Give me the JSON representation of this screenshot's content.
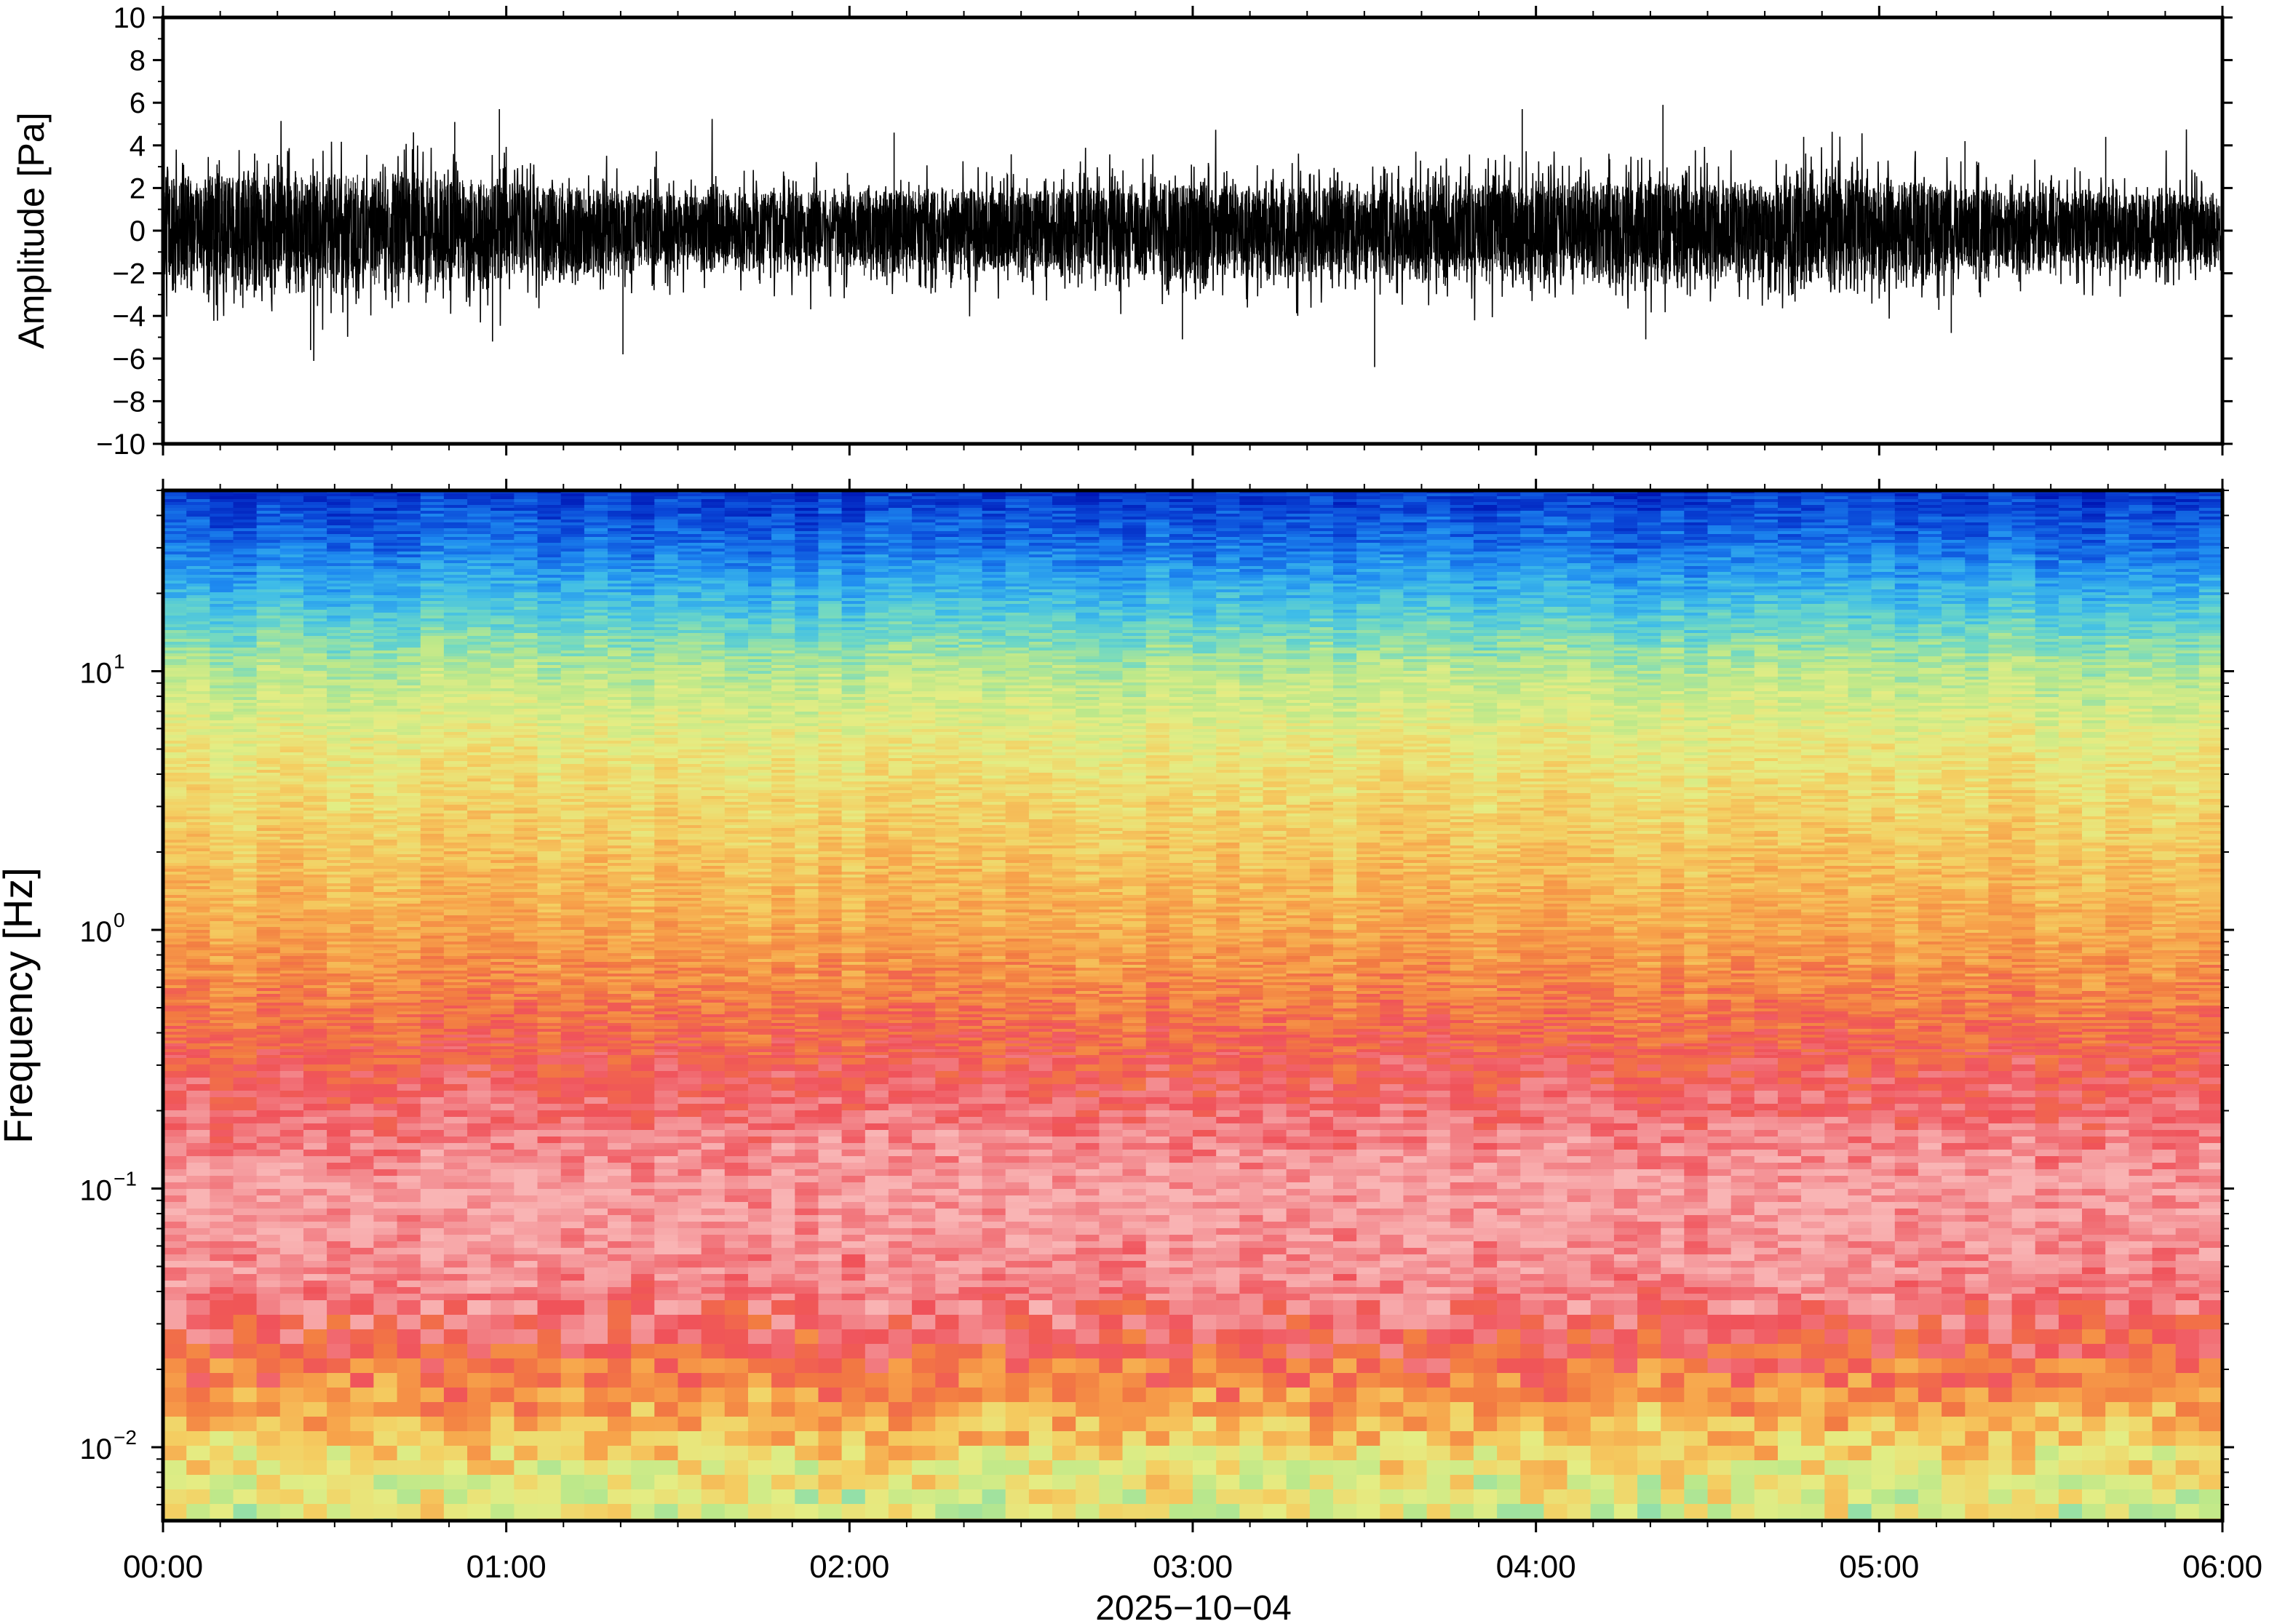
{
  "chart_data": [
    {
      "type": "line",
      "panel": "waveform",
      "ylabel": "Amplitude [Pa]",
      "ylim": [
        -10,
        10
      ],
      "yticks": [
        10,
        8,
        6,
        4,
        2,
        0,
        -2,
        -4,
        -6,
        -8,
        -10
      ],
      "ytick_labels": [
        "10",
        "8",
        "6",
        "4",
        "2",
        "0",
        "−2",
        "−4",
        "−6",
        "−8",
        "−10"
      ],
      "x_range": [
        "00:00",
        "06:00"
      ],
      "envelope_hours": [
        0,
        0.25,
        0.5,
        0.75,
        1,
        1.25,
        1.5,
        1.75,
        2,
        2.25,
        2.5,
        2.75,
        3,
        3.25,
        3.5,
        3.75,
        4,
        4.25,
        4.5,
        4.75,
        5,
        5.25,
        5.5,
        5.75,
        6
      ],
      "envelope_pa": [
        2.6,
        2.8,
        3.0,
        2.8,
        2.6,
        2.2,
        1.9,
        2.0,
        2.1,
        2.2,
        2.1,
        2.3,
        2.4,
        2.3,
        2.2,
        2.5,
        2.3,
        2.6,
        2.4,
        2.6,
        2.5,
        2.2,
        2.0,
        1.9,
        1.9
      ],
      "peaks": [
        {
          "hour": 0.85,
          "value": 5.1
        },
        {
          "hour": 0.98,
          "value": 5.7
        },
        {
          "hour": 0.43,
          "value": -5.6
        },
        {
          "hour": 0.96,
          "value": -5.2
        },
        {
          "hour": 1.34,
          "value": -5.8
        },
        {
          "hour": 2.13,
          "value": 4.6
        },
        {
          "hour": 3.53,
          "value": -6.4
        },
        {
          "hour": 3.96,
          "value": 5.7
        },
        {
          "hour": 4.37,
          "value": 5.9
        },
        {
          "hour": 4.78,
          "value": 4.4
        },
        {
          "hour": 5.25,
          "value": 4.2
        },
        {
          "hour": 5.66,
          "value": 4.4
        },
        {
          "hour": 4.32,
          "value": -5.1
        },
        {
          "hour": 2.97,
          "value": -5.1
        },
        {
          "hour": 5.21,
          "value": -4.8
        }
      ]
    },
    {
      "type": "heatmap",
      "panel": "spectrogram",
      "ylabel": "Frequency [Hz]",
      "yscale": "log",
      "ylim_hz": [
        0.0052,
        50
      ],
      "yticks_hz": [
        10,
        1,
        0.1,
        0.01
      ],
      "ytick_labels": [
        {
          "base": "10",
          "exp": "1"
        },
        {
          "base": "10",
          "exp": "0"
        },
        {
          "base": "10",
          "exp": "−1"
        },
        {
          "base": "10",
          "exp": "−2"
        }
      ],
      "xlabel": "2025−10−04",
      "x_range": [
        "00:00",
        "06:00"
      ],
      "xticks": [
        "00:00",
        "01:00",
        "02:00",
        "03:00",
        "04:00",
        "05:00",
        "06:00"
      ],
      "colormap": "rainbow (blue → cyan → yellow → orange → red → pink)",
      "level_profile": {
        "freq_hz": [
          50,
          30,
          20,
          10,
          5,
          2,
          1,
          0.5,
          0.3,
          0.2,
          0.1,
          0.05,
          0.03,
          0.02,
          0.012,
          0.008,
          0.0052
        ],
        "level": [
          0.05,
          0.14,
          0.24,
          0.42,
          0.52,
          0.6,
          0.66,
          0.75,
          0.82,
          0.87,
          0.95,
          0.92,
          0.86,
          0.76,
          0.62,
          0.52,
          0.48
        ]
      },
      "colormap_stops": [
        "#0017b5",
        "#0a48d8",
        "#1e8af0",
        "#3fbde8",
        "#6fd8c4",
        "#bce88a",
        "#e4ed84",
        "#f4cf62",
        "#f7a24a",
        "#f27a42",
        "#f0525a",
        "#f38c90",
        "#f9b4b4"
      ]
    }
  ]
}
